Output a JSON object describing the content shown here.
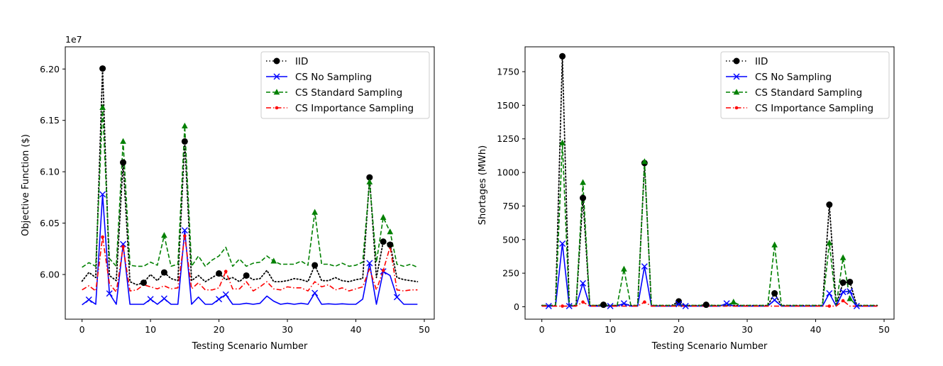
{
  "chart_data": [
    {
      "type": "line",
      "title": "",
      "xlabel": "Testing Scenario Number",
      "ylabel": "Objective Function ($)",
      "offset_label": "1e7",
      "xlim": [
        -2.45,
        51.45
      ],
      "ylim": [
        5.9565,
        6.2216
      ],
      "xticks": [
        0,
        10,
        20,
        30,
        40,
        50
      ],
      "xtick_labels": [
        "0",
        "10",
        "20",
        "30",
        "40",
        "50"
      ],
      "yticks": [
        6.0,
        6.05,
        6.1,
        6.15,
        6.2
      ],
      "ytick_labels": [
        "6.00",
        "6.05",
        "6.10",
        "6.15",
        "6.20"
      ],
      "legend_position": "top-right",
      "series": [
        {
          "name": "IID",
          "color": "#000000",
          "linestyle": "dotted",
          "marker": "circle",
          "x": [
            0,
            1,
            2,
            3,
            4,
            5,
            6,
            7,
            8,
            9,
            10,
            11,
            12,
            13,
            14,
            15,
            16,
            17,
            18,
            19,
            20,
            21,
            22,
            23,
            24,
            25,
            26,
            27,
            28,
            29,
            30,
            31,
            32,
            33,
            34,
            35,
            36,
            37,
            38,
            39,
            40,
            41,
            42,
            43,
            44,
            45,
            46,
            47,
            48,
            49
          ],
          "values": [
            5.9935,
            6.002,
            5.997,
            6.2005,
            5.999,
            5.994,
            6.109,
            5.993,
            5.99,
            5.992,
            6.0,
            5.994,
            6.002,
            5.996,
            5.994,
            6.1295,
            5.994,
            5.999,
            5.993,
            5.997,
            6.001,
            5.995,
            5.997,
            5.993,
            5.999,
            5.995,
            5.996,
            6.004,
            5.993,
            5.993,
            5.994,
            5.996,
            5.995,
            5.993,
            6.009,
            5.994,
            5.994,
            5.997,
            5.994,
            5.993,
            5.995,
            5.996,
            6.0945,
            5.997,
            6.032,
            6.029,
            5.997,
            5.995,
            5.994,
            5.993
          ],
          "marker_indices": [
            3,
            6,
            9,
            12,
            15,
            20,
            24,
            34,
            42,
            44,
            45
          ]
        },
        {
          "name": "CS No Sampling",
          "color": "#0000ff",
          "linestyle": "solid",
          "marker": "x",
          "x": [
            0,
            1,
            2,
            3,
            4,
            5,
            6,
            7,
            8,
            9,
            10,
            11,
            12,
            13,
            14,
            15,
            16,
            17,
            18,
            19,
            20,
            21,
            22,
            23,
            24,
            25,
            26,
            27,
            28,
            29,
            30,
            31,
            32,
            33,
            34,
            35,
            36,
            37,
            38,
            39,
            40,
            41,
            42,
            43,
            44,
            45,
            46,
            47,
            48,
            49
          ],
          "values": [
            5.9705,
            5.9755,
            5.971,
            6.078,
            5.9815,
            5.971,
            6.0295,
            5.971,
            5.971,
            5.971,
            5.976,
            5.971,
            5.9765,
            5.971,
            5.971,
            6.043,
            5.971,
            5.978,
            5.971,
            5.971,
            5.976,
            5.9805,
            5.971,
            5.971,
            5.972,
            5.971,
            5.972,
            5.979,
            5.974,
            5.971,
            5.972,
            5.971,
            5.972,
            5.971,
            5.982,
            5.971,
            5.9715,
            5.971,
            5.9715,
            5.971,
            5.971,
            5.976,
            6.011,
            5.971,
            6.003,
            5.999,
            5.978,
            5.971,
            5.971,
            5.971
          ],
          "marker_indices": [
            1,
            3,
            4,
            6,
            10,
            12,
            15,
            20,
            21,
            34,
            42,
            44,
            46
          ]
        },
        {
          "name": "CS Standard Sampling",
          "color": "#008000",
          "linestyle": "dashed",
          "marker": "triangle",
          "x": [
            0,
            1,
            2,
            3,
            4,
            5,
            6,
            7,
            8,
            9,
            10,
            11,
            12,
            13,
            14,
            15,
            16,
            17,
            18,
            19,
            20,
            21,
            22,
            23,
            24,
            25,
            26,
            27,
            28,
            29,
            30,
            31,
            32,
            33,
            34,
            35,
            36,
            37,
            38,
            39,
            40,
            41,
            42,
            43,
            44,
            45,
            46,
            47,
            48,
            49
          ],
          "values": [
            6.007,
            6.0115,
            6.008,
            6.1625,
            6.0155,
            6.008,
            6.1295,
            6.009,
            6.008,
            6.008,
            6.012,
            6.009,
            6.038,
            6.008,
            6.01,
            6.1445,
            6.008,
            6.018,
            6.008,
            6.014,
            6.018,
            6.0265,
            6.008,
            6.015,
            6.008,
            6.011,
            6.012,
            6.018,
            6.013,
            6.01,
            6.01,
            6.01,
            6.013,
            6.009,
            6.0605,
            6.01,
            6.01,
            6.008,
            6.011,
            6.008,
            6.009,
            6.012,
            6.09,
            6.012,
            6.0555,
            6.0415,
            6.01,
            6.008,
            6.01,
            6.007
          ],
          "marker_indices": [
            3,
            6,
            12,
            15,
            28,
            34,
            42,
            44,
            45
          ]
        },
        {
          "name": "CS Importance Sampling",
          "color": "#ff0000",
          "linestyle": "dashdot",
          "marker": "point",
          "x": [
            0,
            1,
            2,
            3,
            4,
            5,
            6,
            7,
            8,
            9,
            10,
            11,
            12,
            13,
            14,
            15,
            16,
            17,
            18,
            19,
            20,
            21,
            22,
            23,
            24,
            25,
            26,
            27,
            28,
            29,
            30,
            31,
            32,
            33,
            34,
            35,
            36,
            37,
            38,
            39,
            40,
            41,
            42,
            43,
            44,
            45,
            46,
            47,
            48,
            49
          ],
          "values": [
            5.985,
            5.989,
            5.984,
            6.0365,
            5.991,
            5.983,
            6.027,
            5.984,
            5.985,
            5.99,
            5.988,
            5.986,
            5.989,
            5.986,
            5.987,
            6.0375,
            5.986,
            5.992,
            5.985,
            5.985,
            5.987,
            6.003,
            5.986,
            5.986,
            5.993,
            5.984,
            5.988,
            5.993,
            5.986,
            5.985,
            5.988,
            5.987,
            5.987,
            5.984,
            5.993,
            5.988,
            5.99,
            5.985,
            5.987,
            5.984,
            5.986,
            5.988,
            6.0055,
            5.985,
            6.004,
            6.027,
            5.985,
            5.984,
            5.985,
            5.985
          ],
          "marker_indices": [
            3,
            6,
            15,
            21,
            44
          ]
        }
      ]
    },
    {
      "type": "line",
      "title": "",
      "xlabel": "Testing Scenario Number",
      "ylabel": "Shortages (MWh)",
      "xlim": [
        -2.45,
        51.45
      ],
      "ylim": [
        -92.5,
        1935
      ],
      "xticks": [
        0,
        10,
        20,
        30,
        40,
        50
      ],
      "xtick_labels": [
        "0",
        "10",
        "20",
        "30",
        "40",
        "50"
      ],
      "yticks": [
        0,
        250,
        500,
        750,
        1000,
        1250,
        1500,
        1750
      ],
      "ytick_labels": [
        "0",
        "250",
        "500",
        "750",
        "1000",
        "1250",
        "1500",
        "1750"
      ],
      "legend_position": "top-right",
      "series": [
        {
          "name": "IID",
          "color": "#000000",
          "linestyle": "dotted",
          "marker": "circle",
          "x": [
            0,
            1,
            2,
            3,
            4,
            5,
            6,
            7,
            8,
            9,
            10,
            11,
            12,
            13,
            14,
            15,
            16,
            17,
            18,
            19,
            20,
            21,
            22,
            23,
            24,
            25,
            26,
            27,
            28,
            29,
            30,
            31,
            32,
            33,
            34,
            35,
            36,
            37,
            38,
            39,
            40,
            41,
            42,
            43,
            44,
            45,
            46,
            47,
            48,
            49
          ],
          "values": [
            10,
            10,
            10,
            1865,
            10,
            10,
            810,
            10,
            10,
            15,
            10,
            10,
            20,
            10,
            10,
            1070,
            10,
            10,
            10,
            10,
            40,
            10,
            10,
            10,
            15,
            10,
            10,
            10,
            10,
            10,
            10,
            10,
            10,
            10,
            100,
            10,
            10,
            10,
            10,
            10,
            10,
            10,
            760,
            10,
            180,
            185,
            10,
            10,
            10,
            10
          ],
          "marker_indices": [
            3,
            6,
            9,
            15,
            20,
            24,
            34,
            42,
            44,
            45
          ]
        },
        {
          "name": "CS No Sampling",
          "color": "#0000ff",
          "linestyle": "solid",
          "marker": "x",
          "x": [
            0,
            1,
            2,
            3,
            4,
            5,
            6,
            7,
            8,
            9,
            10,
            11,
            12,
            13,
            14,
            15,
            16,
            17,
            18,
            19,
            20,
            21,
            22,
            23,
            24,
            25,
            26,
            27,
            28,
            29,
            30,
            31,
            32,
            33,
            34,
            35,
            36,
            37,
            38,
            39,
            40,
            41,
            42,
            43,
            44,
            45,
            46,
            47,
            48,
            49
          ],
          "values": [
            5,
            5,
            5,
            470,
            5,
            5,
            175,
            5,
            5,
            5,
            5,
            5,
            25,
            5,
            5,
            300,
            5,
            5,
            5,
            5,
            20,
            5,
            5,
            5,
            5,
            5,
            5,
            25,
            5,
            5,
            5,
            5,
            5,
            5,
            50,
            5,
            5,
            5,
            5,
            5,
            5,
            5,
            100,
            5,
            110,
            115,
            5,
            5,
            5,
            5
          ],
          "marker_indices": [
            1,
            3,
            4,
            6,
            10,
            12,
            15,
            20,
            21,
            27,
            34,
            42,
            44,
            45,
            46
          ]
        },
        {
          "name": "CS Standard Sampling",
          "color": "#008000",
          "linestyle": "dashed",
          "marker": "triangle",
          "x": [
            0,
            1,
            2,
            3,
            4,
            5,
            6,
            7,
            8,
            9,
            10,
            11,
            12,
            13,
            14,
            15,
            16,
            17,
            18,
            19,
            20,
            21,
            22,
            23,
            24,
            25,
            26,
            27,
            28,
            29,
            30,
            31,
            32,
            33,
            34,
            35,
            36,
            37,
            38,
            39,
            40,
            41,
            42,
            43,
            44,
            45,
            46,
            47,
            48,
            49
          ],
          "values": [
            10,
            10,
            10,
            1220,
            10,
            10,
            925,
            10,
            10,
            10,
            10,
            10,
            280,
            10,
            10,
            1080,
            10,
            10,
            10,
            10,
            10,
            10,
            10,
            10,
            10,
            10,
            10,
            10,
            35,
            10,
            10,
            10,
            10,
            10,
            460,
            10,
            10,
            10,
            10,
            10,
            10,
            10,
            475,
            10,
            365,
            60,
            10,
            10,
            10,
            10
          ],
          "marker_indices": [
            3,
            6,
            12,
            15,
            28,
            34,
            42,
            44,
            45
          ]
        },
        {
          "name": "CS Importance Sampling",
          "color": "#ff0000",
          "linestyle": "dashdot",
          "marker": "point",
          "x": [
            0,
            1,
            2,
            3,
            4,
            5,
            6,
            7,
            8,
            9,
            10,
            11,
            12,
            13,
            14,
            15,
            16,
            17,
            18,
            19,
            20,
            21,
            22,
            23,
            24,
            25,
            26,
            27,
            28,
            29,
            30,
            31,
            32,
            33,
            34,
            35,
            36,
            37,
            38,
            39,
            40,
            41,
            42,
            43,
            44,
            45,
            46,
            47,
            48,
            49
          ],
          "values": [
            5,
            5,
            5,
            5,
            5,
            5,
            35,
            5,
            5,
            5,
            5,
            5,
            5,
            5,
            5,
            35,
            5,
            5,
            5,
            5,
            5,
            5,
            5,
            5,
            5,
            5,
            5,
            5,
            5,
            5,
            5,
            5,
            5,
            5,
            5,
            5,
            5,
            5,
            5,
            5,
            5,
            5,
            5,
            5,
            45,
            5,
            5,
            5,
            5,
            5
          ],
          "marker_indices": [
            3,
            6,
            15,
            42,
            44
          ]
        }
      ]
    }
  ]
}
